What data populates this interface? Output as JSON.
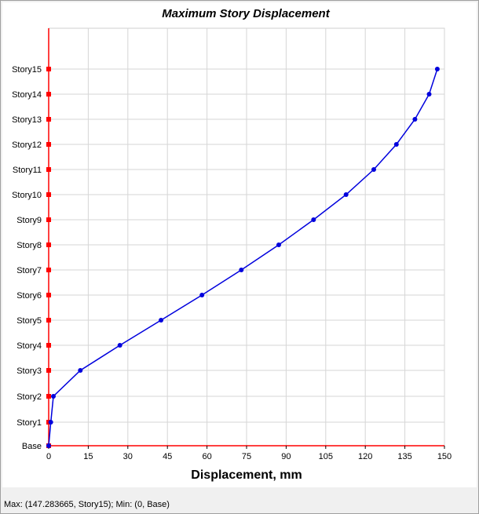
{
  "chart_data": {
    "type": "line",
    "title": "Maximum Story Displacement",
    "xlabel": "Displacement, mm",
    "ylabel": "",
    "xlim": [
      0,
      150
    ],
    "x_ticks": [
      0,
      15,
      30,
      45,
      60,
      75,
      90,
      105,
      120,
      135,
      150
    ],
    "categories": [
      "Base",
      "Story1",
      "Story2",
      "Story3",
      "Story4",
      "Story5",
      "Story6",
      "Story7",
      "Story8",
      "Story9",
      "Story10",
      "Story11",
      "Story12",
      "Story13",
      "Story14",
      "Story15"
    ],
    "grid": true,
    "series": [
      {
        "color": "#0000dd",
        "x": [
          0,
          0.8,
          1.8,
          12.0,
          27.0,
          42.6,
          58.1,
          73.0,
          87.2,
          100.4,
          112.7,
          123.2,
          131.8,
          138.8,
          144.2,
          147.283665
        ],
        "y": [
          "Base",
          "Story1",
          "Story2",
          "Story3",
          "Story4",
          "Story5",
          "Story6",
          "Story7",
          "Story8",
          "Story9",
          "Story10",
          "Story11",
          "Story12",
          "Story13",
          "Story14",
          "Story15"
        ]
      }
    ],
    "story_marker_color": "#ff0000"
  },
  "status": {
    "text": "Max: (147.283665, Story15);   Min: (0, Base)"
  }
}
